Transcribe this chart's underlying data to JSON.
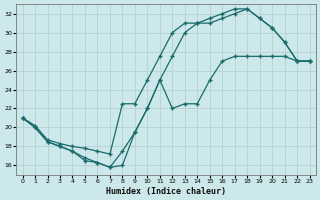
{
  "xlabel": "Humidex (Indice chaleur)",
  "background_color": "#cce8ea",
  "grid_color": "#b8d4d6",
  "line_color": "#1a6b6b",
  "xlim": [
    -0.5,
    23.5
  ],
  "ylim": [
    15.0,
    33.0
  ],
  "yticks": [
    16,
    18,
    20,
    22,
    24,
    26,
    28,
    30,
    32
  ],
  "xticks": [
    0,
    1,
    2,
    3,
    4,
    5,
    6,
    7,
    8,
    9,
    10,
    11,
    12,
    13,
    14,
    15,
    16,
    17,
    18,
    19,
    20,
    21,
    22,
    23
  ],
  "line1_x": [
    0,
    1,
    2,
    3,
    4,
    5,
    6,
    7,
    8,
    9,
    10,
    11,
    12,
    13,
    14,
    15,
    16,
    17,
    18,
    19,
    20,
    21,
    22,
    23
  ],
  "line1_y": [
    21.0,
    20.0,
    18.5,
    18.0,
    17.5,
    16.5,
    16.3,
    15.8,
    17.5,
    19.5,
    22.0,
    25.0,
    27.5,
    30.0,
    31.0,
    31.0,
    31.5,
    32.0,
    32.5,
    31.5,
    30.5,
    29.0,
    27.0,
    27.0
  ],
  "line2_x": [
    0,
    1,
    2,
    3,
    4,
    5,
    6,
    7,
    8,
    9,
    10,
    11,
    12,
    13,
    14,
    15,
    16,
    17,
    18,
    19,
    20,
    21,
    22,
    23
  ],
  "line2_y": [
    21.0,
    20.2,
    18.7,
    18.3,
    18.0,
    17.8,
    17.5,
    17.2,
    22.5,
    22.5,
    25.0,
    27.5,
    30.0,
    31.0,
    31.0,
    31.5,
    32.0,
    32.5,
    32.5,
    31.5,
    30.5,
    29.0,
    27.0,
    27.0
  ],
  "line3_x": [
    0,
    1,
    2,
    3,
    4,
    5,
    6,
    7,
    8,
    9,
    10,
    11,
    12,
    13,
    14,
    15,
    16,
    17,
    18,
    19,
    20,
    21,
    22,
    23
  ],
  "line3_y": [
    21.0,
    20.0,
    18.5,
    18.0,
    17.5,
    16.8,
    16.3,
    15.8,
    16.0,
    19.5,
    22.0,
    25.0,
    22.0,
    22.5,
    22.5,
    25.0,
    27.0,
    27.5,
    27.5,
    27.5,
    27.5,
    27.5,
    27.0,
    27.0
  ]
}
